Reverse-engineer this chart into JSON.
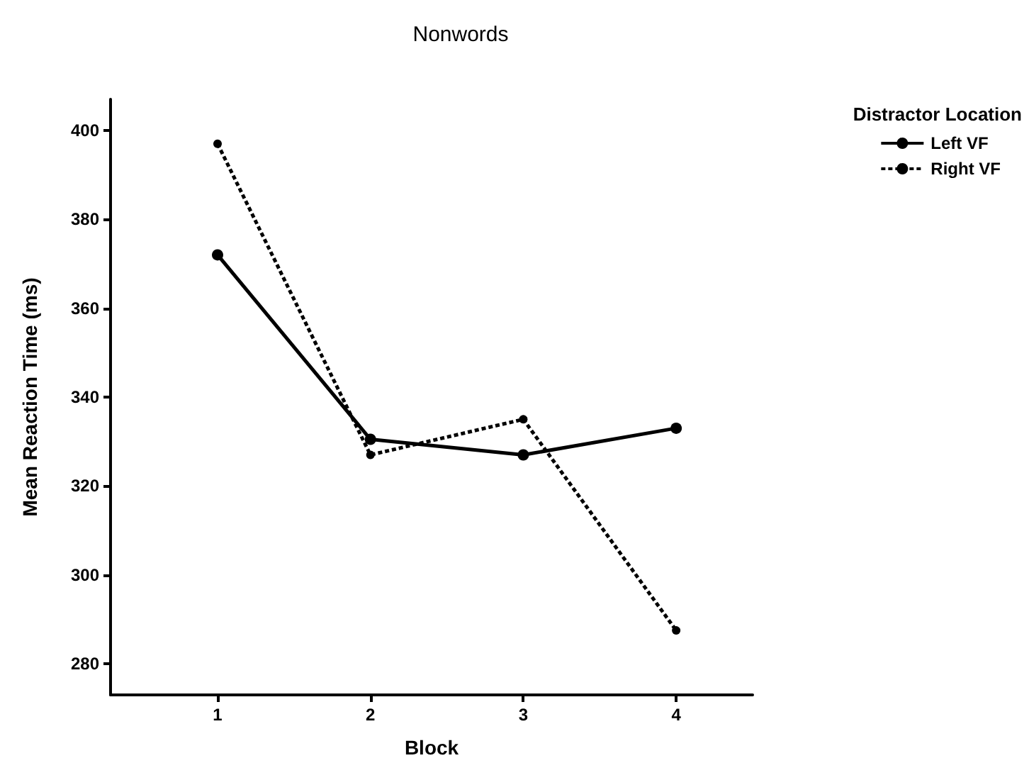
{
  "chart_data": {
    "type": "line",
    "title": "Nonwords",
    "xlabel": "Block",
    "ylabel": "Mean Reaction Time (ms)",
    "legend_title": "Distractor Location",
    "x": [
      1,
      2,
      3,
      4
    ],
    "xlim": [
      0.3,
      4.5
    ],
    "xticks": [
      1,
      2,
      3,
      4
    ],
    "ylim": [
      273,
      407
    ],
    "yticks": [
      280,
      300,
      320,
      340,
      360,
      380,
      400
    ],
    "series": [
      {
        "name": "Left VF",
        "color": "#000000",
        "values": [
          372,
          330.5,
          327,
          333
        ],
        "line_style": "solid"
      },
      {
        "name": "Right VF",
        "color": "#000000",
        "values": [
          397,
          327,
          335,
          287.5
        ],
        "line_style": "dotted"
      }
    ],
    "marker": "circle",
    "grid": false,
    "legend": "top right"
  }
}
